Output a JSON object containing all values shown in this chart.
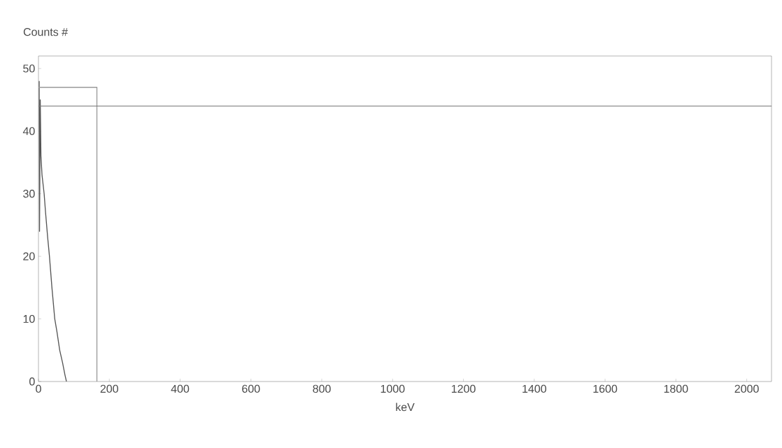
{
  "chart_data": {
    "type": "line",
    "xlabel": "keV",
    "ylabel": "Counts #",
    "xlim": [
      0,
      2070
    ],
    "ylim": [
      0,
      52
    ],
    "xticks": [
      0,
      200,
      400,
      600,
      800,
      1000,
      1200,
      1400,
      1600,
      1800,
      2000
    ],
    "yticks": [
      0,
      10,
      20,
      30,
      40,
      50
    ],
    "series": [
      {
        "color": "#555555",
        "x": [
          2,
          3,
          5,
          7,
          10,
          14,
          16,
          20,
          26,
          31,
          38,
          46,
          52,
          60,
          68,
          75,
          79
        ],
        "values": [
          48,
          24,
          45,
          36,
          33,
          31,
          30,
          27,
          23,
          20,
          15,
          10,
          8,
          5,
          3,
          1,
          0
        ]
      },
      {
        "color": "#999999",
        "x": [
          0,
          165,
          165
        ],
        "values": [
          47,
          47,
          0
        ]
      }
    ],
    "ref_lines": [
      {
        "axis": "y",
        "value": 44,
        "color": "#777777"
      }
    ]
  }
}
